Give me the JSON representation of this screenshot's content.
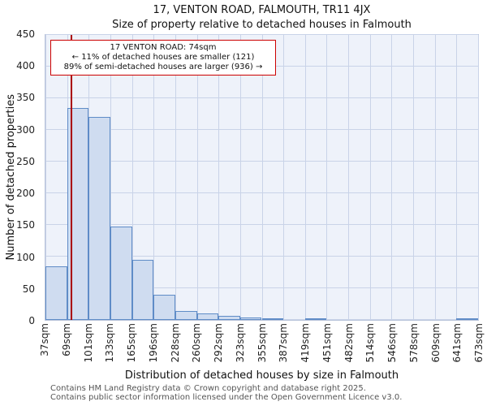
{
  "title": "17, VENTON ROAD, FALMOUTH, TR11 4JX",
  "subtitle": "Size of property relative to detached houses in Falmouth",
  "annotation": {
    "line1": "17 VENTON ROAD: 74sqm",
    "line2": "← 11% of detached houses are smaller (121)",
    "line3": "89% of semi-detached houses are larger (936) →"
  },
  "footer": {
    "line1": "Contains HM Land Registry data © Crown copyright and database right 2025.",
    "line2": "Contains public sector information licensed under the Open Government Licence v3.0."
  },
  "chart_data": {
    "type": "bar",
    "title": "17, VENTON ROAD, FALMOUTH, TR11 4JX — Size of property relative to detached houses in Falmouth",
    "xlabel": "Distribution of detached houses by size in Falmouth",
    "ylabel": "Number of detached properties",
    "bin_labels": [
      "37sqm",
      "69sqm",
      "101sqm",
      "133sqm",
      "165sqm",
      "196sqm",
      "228sqm",
      "260sqm",
      "292sqm",
      "323sqm",
      "355sqm",
      "387sqm",
      "419sqm",
      "451sqm",
      "482sqm",
      "514sqm",
      "546sqm",
      "578sqm",
      "609sqm",
      "641sqm",
      "673sqm"
    ],
    "values": [
      85,
      335,
      320,
      148,
      95,
      40,
      14,
      10,
      6,
      4,
      2,
      0,
      2,
      0,
      0,
      0,
      0,
      0,
      0,
      2
    ],
    "ylim": [
      0,
      450
    ],
    "ytick_step": 50,
    "grid": true,
    "marker_value_sqm": 74,
    "x_range_sqm": [
      37,
      673
    ],
    "colors": {
      "bar_fill": "#cfdcf0",
      "bar_edge": "#5f8cc7",
      "grid": "#c9d3e8",
      "marker_line": "#aa0000",
      "plot_bg": "#eef2fa"
    }
  }
}
